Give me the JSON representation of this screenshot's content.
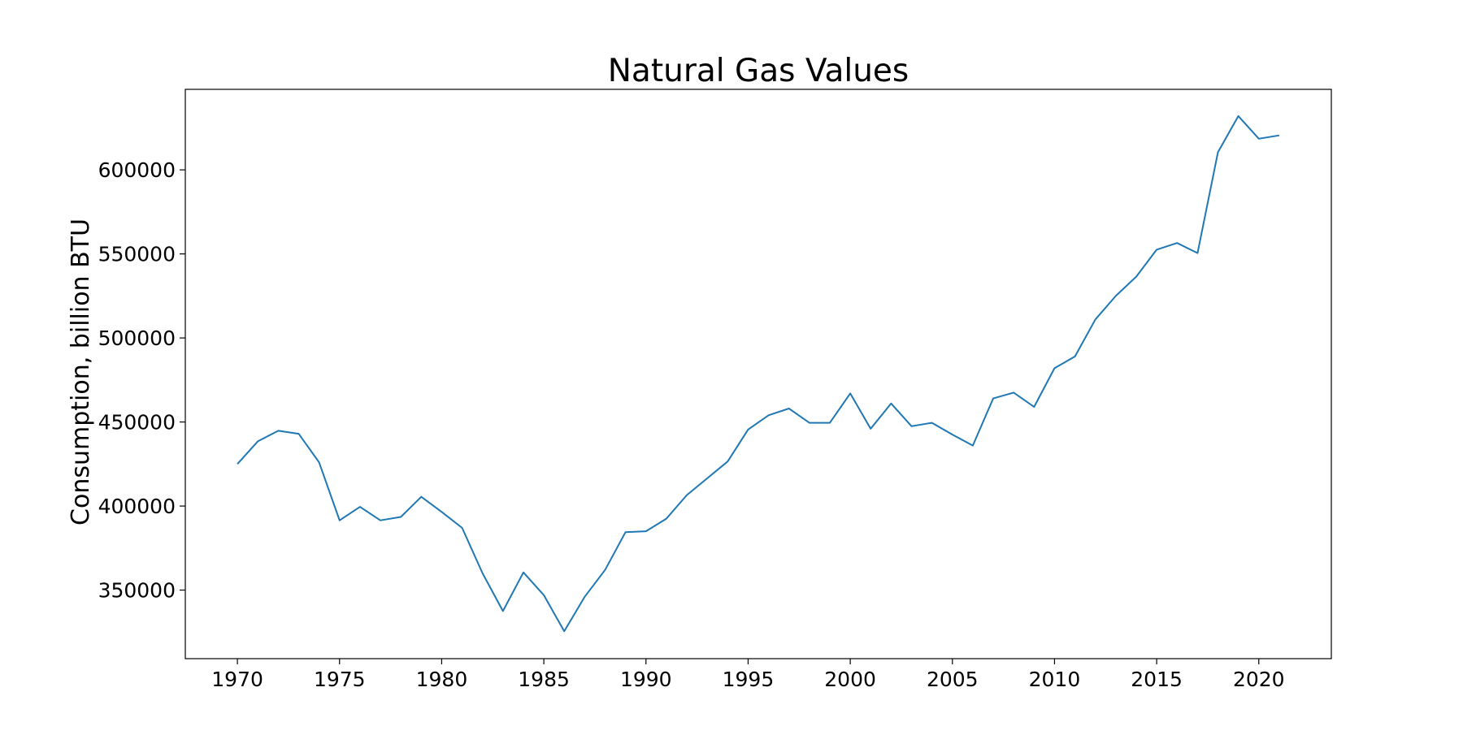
{
  "chart_data": {
    "type": "line",
    "title": "Natural Gas Values",
    "xlabel": "",
    "ylabel": "Consumption, billion BTU",
    "xlim": [
      1967.45,
      2023.55
    ],
    "ylim": [
      309200,
      647900
    ],
    "x_ticks": [
      "1970",
      "1975",
      "1980",
      "1985",
      "1990",
      "1995",
      "2000",
      "2005",
      "2010",
      "2015",
      "2020"
    ],
    "y_ticks": [
      "350000",
      "400000",
      "450000",
      "500000",
      "550000",
      "600000"
    ],
    "grid": false,
    "legend": "none",
    "line_color": "#1f77b4",
    "series": [
      {
        "x": [
          1970,
          1971,
          1972,
          1973,
          1974,
          1975,
          1976,
          1977,
          1978,
          1979,
          1980,
          1981,
          1982,
          1983,
          1984,
          1985,
          1986,
          1987,
          1988,
          1989,
          1990,
          1991,
          1992,
          1993,
          1994,
          1995,
          1996,
          1997,
          1998,
          1999,
          2000,
          2001,
          2002,
          2003,
          2004,
          2005,
          2006,
          2007,
          2008,
          2009,
          2010,
          2011,
          2012,
          2013,
          2014,
          2015,
          2016,
          2017,
          2018,
          2019,
          2020,
          2021
        ],
        "values": [
          425000,
          438500,
          444800,
          443000,
          426000,
          391500,
          399500,
          391500,
          393500,
          405500,
          396500,
          387000,
          360000,
          337500,
          360500,
          347000,
          325500,
          346000,
          362000,
          384500,
          385000,
          392500,
          406500,
          416500,
          426500,
          445500,
          454000,
          458000,
          449500,
          449500,
          467000,
          446000,
          461000,
          447500,
          449500,
          442500,
          436000,
          464000,
          467500,
          459000,
          482000,
          489000,
          511000,
          525000,
          536500,
          552500,
          556500,
          550500,
          610500,
          632000,
          618500,
          620500
        ]
      }
    ]
  }
}
